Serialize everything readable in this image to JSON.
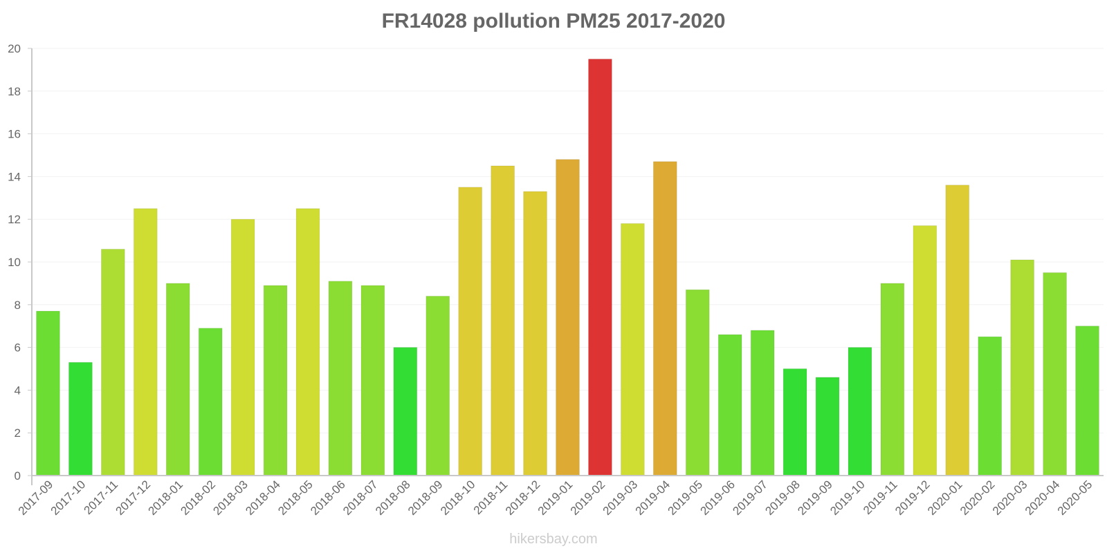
{
  "header": {
    "title": "FR14028 pollution PM25 2017-2020"
  },
  "footer": {
    "watermark": "hikersbay.com"
  },
  "colors": {
    "axis": "#c8c8c8",
    "grid": "#f2f2f2",
    "text": "#666666"
  },
  "chart_data": {
    "type": "bar",
    "title": "FR14028 pollution PM25 2017-2020",
    "xlabel": "",
    "ylabel": "",
    "ylim": [
      0,
      20
    ],
    "yticks": [
      0,
      2,
      4,
      6,
      8,
      10,
      12,
      14,
      16,
      18,
      20
    ],
    "grid": true,
    "legend": null,
    "categories": [
      "2017-09",
      "2017-10",
      "2017-11",
      "2017-12",
      "2018-01",
      "2018-02",
      "2018-03",
      "2018-04",
      "2018-05",
      "2018-06",
      "2018-07",
      "2018-08",
      "2018-09",
      "2018-10",
      "2018-11",
      "2018-12",
      "2019-01",
      "2019-02",
      "2019-03",
      "2019-04",
      "2019-05",
      "2019-06",
      "2019-07",
      "2019-08",
      "2019-09",
      "2019-10",
      "2019-11",
      "2019-12",
      "2020-01",
      "2020-02",
      "2020-03",
      "2020-04",
      "2020-05"
    ],
    "values": [
      7.7,
      5.3,
      10.6,
      12.5,
      9.0,
      6.9,
      12.0,
      8.9,
      12.5,
      9.1,
      8.9,
      6.0,
      8.4,
      13.5,
      14.5,
      13.3,
      14.8,
      19.5,
      11.8,
      14.7,
      8.7,
      6.6,
      6.8,
      5.0,
      4.6,
      6.0,
      9.0,
      11.7,
      13.6,
      6.5,
      10.1,
      9.5,
      7.0
    ],
    "bar_colors": [
      "#6cdd33",
      "#33dd33",
      "#addd33",
      "#cfdd33",
      "#8cdd33",
      "#6cdd33",
      "#cfdd33",
      "#8cdd33",
      "#cfdd33",
      "#8cdd33",
      "#8cdd33",
      "#33dd33",
      "#8cdd33",
      "#ddcc33",
      "#ddcc33",
      "#ddcc33",
      "#ddaa33",
      "#dd3333",
      "#cfdd33",
      "#ddaa33",
      "#8cdd33",
      "#6cdd33",
      "#6cdd33",
      "#33dd33",
      "#33dd33",
      "#33dd33",
      "#8cdd33",
      "#cfdd33",
      "#ddcc33",
      "#6cdd33",
      "#addd33",
      "#8cdd33",
      "#6cdd33"
    ]
  }
}
